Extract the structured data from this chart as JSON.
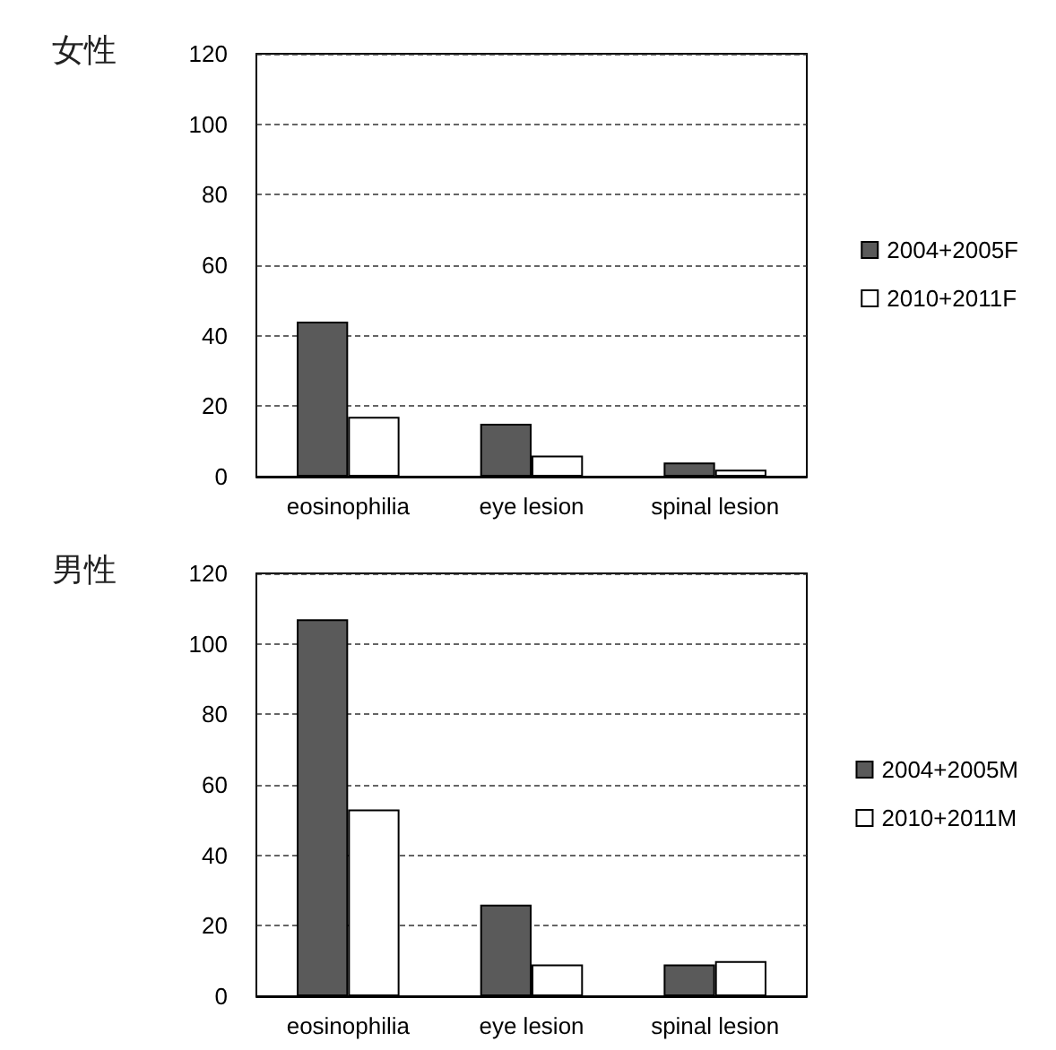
{
  "chart_data": [
    {
      "type": "bar",
      "title": "女性",
      "categories": [
        "eosinophilia",
        "eye lesion",
        "spinal lesion"
      ],
      "series": [
        {
          "name": "2004+2005F",
          "color": "#5a5a5a",
          "values": [
            44,
            15,
            4
          ]
        },
        {
          "name": "2010+2011F",
          "color": "#ffffff",
          "values": [
            17,
            6,
            2
          ]
        }
      ],
      "ylim": [
        0,
        120
      ],
      "yticks": [
        0,
        20,
        40,
        60,
        80,
        100,
        120
      ],
      "grid": "y",
      "legend": "right"
    },
    {
      "type": "bar",
      "title": "男性",
      "categories": [
        "eosinophilia",
        "eye lesion",
        "spinal lesion"
      ],
      "series": [
        {
          "name": "2004+2005M",
          "color": "#5a5a5a",
          "values": [
            107,
            26,
            9
          ]
        },
        {
          "name": "2010+2011M",
          "color": "#ffffff",
          "values": [
            53,
            9,
            10
          ]
        }
      ],
      "ylim": [
        0,
        120
      ],
      "yticks": [
        0,
        20,
        40,
        60,
        80,
        100,
        120
      ],
      "grid": "y",
      "legend": "right"
    }
  ]
}
